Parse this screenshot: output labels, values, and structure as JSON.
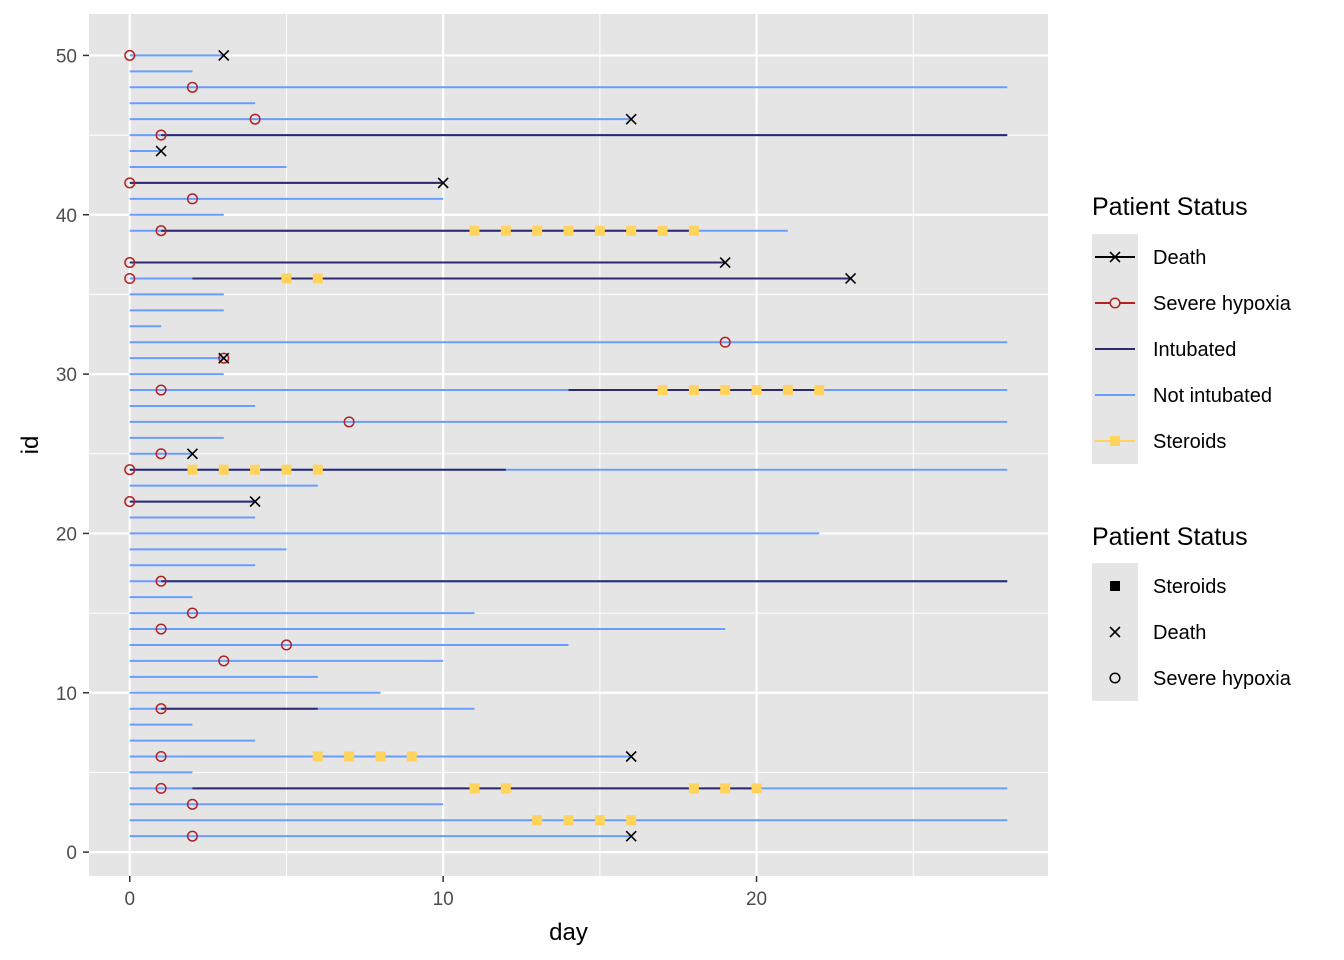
{
  "chart_data": {
    "type": "swimmer",
    "xlabel": "day",
    "ylabel": "id",
    "xlim": [
      -1.3,
      29.3
    ],
    "ylim": [
      -1.5,
      52.6
    ],
    "x_ticks": [
      0,
      10,
      20
    ],
    "x_minor_ticks": [
      5,
      15,
      25
    ],
    "y_ticks": [
      0,
      10,
      20,
      30,
      40,
      50
    ],
    "y_minor_ticks": [
      5,
      15,
      25,
      35,
      45
    ],
    "grid": true,
    "colors": {
      "panel_bg": "#E5E5E5",
      "grid": "#FFFFFF",
      "not_intubated": "#6A9DFF",
      "intubated": "#2E2A6E",
      "severe_hypoxia": "#B22222",
      "death": "#000000",
      "steroids": "#FFD35C"
    },
    "legend_status": {
      "title": "Patient Status",
      "items": [
        {
          "label": "Death",
          "key": "death"
        },
        {
          "label": "Severe hypoxia",
          "key": "severe_hypoxia"
        },
        {
          "label": "Intubated",
          "key": "intubated"
        },
        {
          "label": "Not intubated",
          "key": "not_intubated"
        },
        {
          "label": "Steroids",
          "key": "steroids"
        }
      ]
    },
    "legend_shape": {
      "title": "Patient Status",
      "items": [
        {
          "label": "Steroids",
          "key": "square"
        },
        {
          "label": "Death",
          "key": "cross"
        },
        {
          "label": "Severe hypoxia",
          "key": "circle"
        }
      ]
    },
    "patients": [
      {
        "id": 1,
        "end": 16,
        "hypoxia": 2,
        "death": 16
      },
      {
        "id": 2,
        "end": 28,
        "steroids": [
          13,
          14,
          15,
          16
        ]
      },
      {
        "id": 3,
        "end": 10,
        "hypoxia": 2
      },
      {
        "id": 4,
        "end": 28,
        "hypoxia": 1,
        "intubated": [
          [
            2,
            20
          ]
        ],
        "steroids": [
          11,
          12,
          18,
          19,
          20
        ]
      },
      {
        "id": 5,
        "end": 2
      },
      {
        "id": 6,
        "end": 16,
        "hypoxia": 1,
        "death": 16,
        "steroids": [
          6,
          7,
          8,
          9
        ]
      },
      {
        "id": 7,
        "end": 4
      },
      {
        "id": 8,
        "end": 2
      },
      {
        "id": 9,
        "end": 11,
        "hypoxia": 1,
        "intubated": [
          [
            1,
            6
          ]
        ]
      },
      {
        "id": 10,
        "end": 8
      },
      {
        "id": 11,
        "end": 6
      },
      {
        "id": 12,
        "end": 10,
        "hypoxia": 3
      },
      {
        "id": 13,
        "end": 14,
        "hypoxia": 5
      },
      {
        "id": 14,
        "end": 19,
        "hypoxia": 1
      },
      {
        "id": 15,
        "end": 11,
        "hypoxia": 2
      },
      {
        "id": 16,
        "end": 2
      },
      {
        "id": 17,
        "end": 28,
        "hypoxia": 1,
        "intubated": [
          [
            1,
            28
          ]
        ]
      },
      {
        "id": 18,
        "end": 4
      },
      {
        "id": 19,
        "end": 5
      },
      {
        "id": 20,
        "end": 22
      },
      {
        "id": 21,
        "end": 4
      },
      {
        "id": 22,
        "end": 4,
        "hypoxia": 0,
        "death": 4,
        "intubated": [
          [
            0,
            4
          ]
        ]
      },
      {
        "id": 23,
        "end": 6
      },
      {
        "id": 24,
        "end": 28,
        "hypoxia": 0,
        "intubated": [
          [
            0,
            12
          ]
        ],
        "steroids": [
          2,
          3,
          4,
          5,
          6
        ]
      },
      {
        "id": 25,
        "end": 2,
        "hypoxia": 1,
        "death": 2
      },
      {
        "id": 26,
        "end": 3
      },
      {
        "id": 27,
        "end": 28,
        "hypoxia": 7
      },
      {
        "id": 28,
        "end": 4
      },
      {
        "id": 29,
        "end": 28,
        "hypoxia": 1,
        "intubated": [
          [
            14,
            22
          ]
        ],
        "steroids": [
          17,
          18,
          19,
          20,
          21,
          22
        ]
      },
      {
        "id": 30,
        "end": 3
      },
      {
        "id": 31,
        "end": 3,
        "hypoxia": 3,
        "death": 3
      },
      {
        "id": 32,
        "end": 28,
        "hypoxia": 19
      },
      {
        "id": 33,
        "end": 1
      },
      {
        "id": 34,
        "end": 3
      },
      {
        "id": 35,
        "end": 3
      },
      {
        "id": 36,
        "end": 23,
        "hypoxia": 0,
        "death": 23,
        "intubated": [
          [
            2,
            23
          ]
        ],
        "steroids": [
          5,
          6
        ]
      },
      {
        "id": 37,
        "end": 19,
        "hypoxia": 0,
        "death": 19,
        "intubated": [
          [
            0,
            19
          ]
        ]
      },
      {
        "id": 38,
        "end": 0
      },
      {
        "id": 39,
        "end": 21,
        "hypoxia": 1,
        "intubated": [
          [
            1,
            18
          ]
        ],
        "steroids": [
          11,
          12,
          13,
          14,
          15,
          16,
          17,
          18
        ]
      },
      {
        "id": 40,
        "end": 3
      },
      {
        "id": 41,
        "end": 10,
        "hypoxia": 2
      },
      {
        "id": 42,
        "end": 10,
        "hypoxia": 0,
        "death": 10,
        "intubated": [
          [
            0,
            10
          ]
        ]
      },
      {
        "id": 43,
        "end": 5
      },
      {
        "id": 44,
        "end": 1,
        "death": 1
      },
      {
        "id": 45,
        "end": 28,
        "hypoxia": 1,
        "intubated": [
          [
            1,
            28
          ]
        ]
      },
      {
        "id": 46,
        "end": 16,
        "hypoxia": 4,
        "death": 16
      },
      {
        "id": 47,
        "end": 4
      },
      {
        "id": 48,
        "end": 28,
        "hypoxia": 2
      },
      {
        "id": 49,
        "end": 2
      },
      {
        "id": 50,
        "end": 3,
        "hypoxia": 0,
        "death": 3
      }
    ]
  }
}
